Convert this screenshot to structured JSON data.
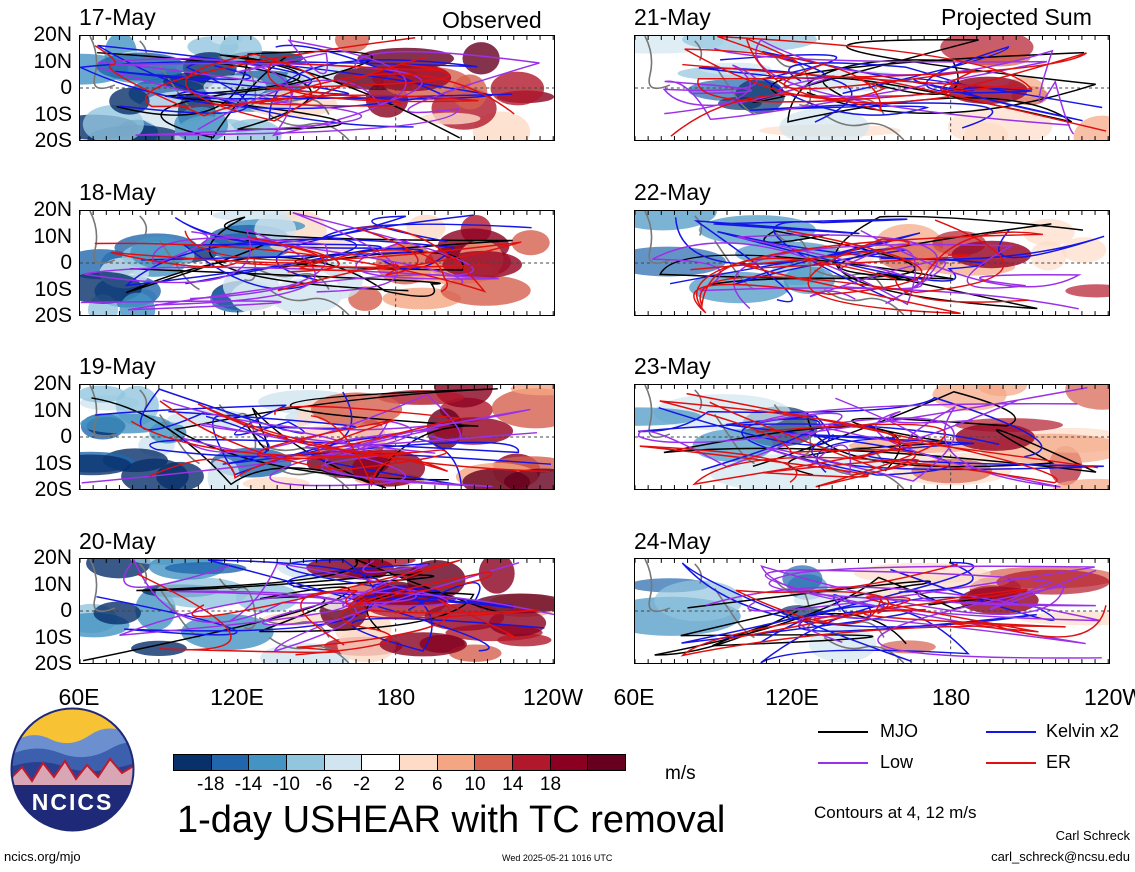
{
  "columns": [
    {
      "title": "Observed",
      "dates": [
        "17-May",
        "18-May",
        "19-May",
        "20-May"
      ]
    },
    {
      "title": "Projected Sum",
      "dates": [
        "21-May",
        "22-May",
        "23-May",
        "24-May"
      ]
    }
  ],
  "lat_labels": [
    "20N",
    "10N",
    "0",
    "10S",
    "20S"
  ],
  "lon_labels": [
    "60E",
    "120E",
    "180",
    "120W"
  ],
  "colorbar": {
    "colors": [
      "#08306b",
      "#2166ac",
      "#4393c3",
      "#92c5de",
      "#d1e5f0",
      "#ffffff",
      "#fddbc7",
      "#f4a582",
      "#d6604d",
      "#b2182b",
      "#8b0020",
      "#67001f"
    ],
    "ticks": [
      "-18",
      "-14",
      "-10",
      "-6",
      "-2",
      "2",
      "6",
      "10",
      "14",
      "18"
    ],
    "units": "m/s"
  },
  "title": "1-day USHEAR with TC removal",
  "legend": [
    {
      "label": "MJO",
      "color": "#000000"
    },
    {
      "label": "Kelvin x2",
      "color": "#1515e6"
    },
    {
      "label": "Low",
      "color": "#9a30e8"
    },
    {
      "label": "ER",
      "color": "#e01010"
    }
  ],
  "contour_note": "Contours at 4, 12 m/s",
  "logo_text": "NCICS",
  "url": "ncics.org/mjo",
  "timestamp": "Wed 2025-05-21 1016 UTC",
  "author": "Carl Schreck",
  "email": "carl_schreck@ncsu.edu"
}
